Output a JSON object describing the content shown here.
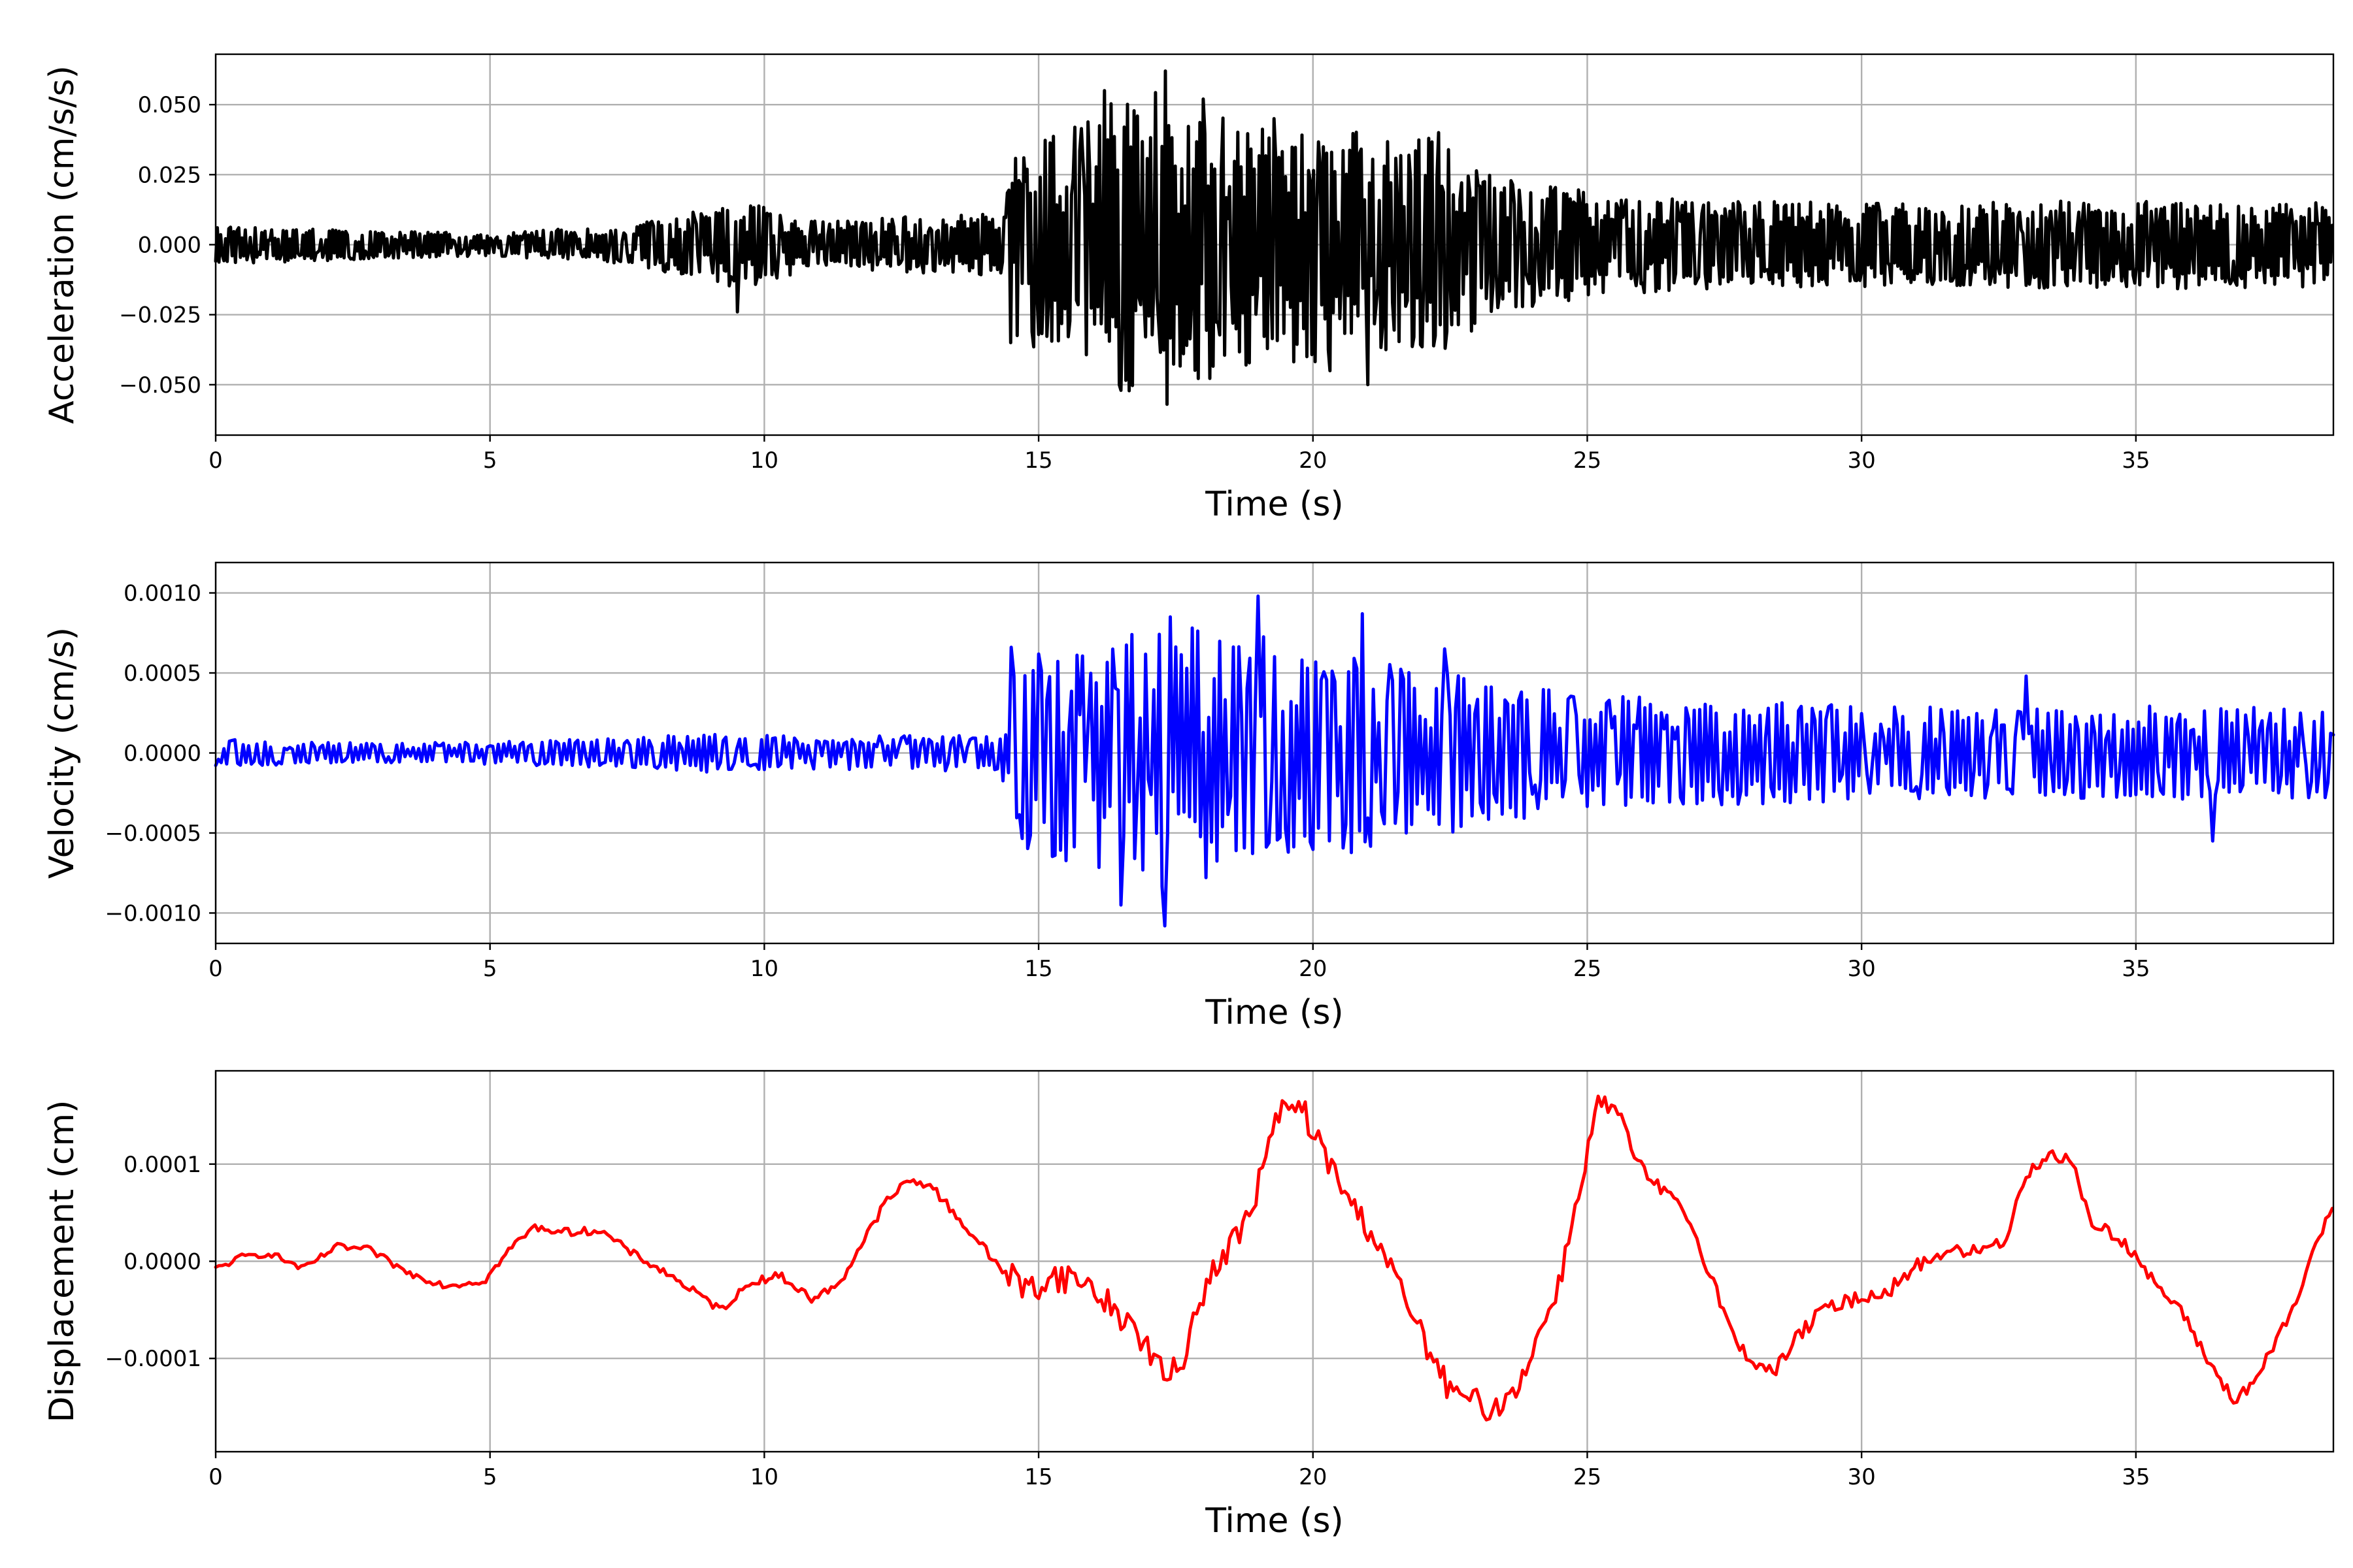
{
  "chart_data": [
    {
      "type": "line",
      "title": "",
      "xlabel": "Time (s)",
      "ylabel": "Acceleration (cm/s/s)",
      "xlim": [
        0,
        38.6
      ],
      "ylim": [
        -0.068,
        0.068
      ],
      "xticks": [
        0,
        5,
        10,
        15,
        20,
        25,
        30,
        35
      ],
      "xtick_labels": [
        "0",
        "5",
        "10",
        "15",
        "20",
        "25",
        "30",
        "35"
      ],
      "yticks": [
        -0.05,
        -0.025,
        0,
        0.025,
        0.05
      ],
      "ytick_labels": [
        "−0.050",
        "−0.025",
        "0.000",
        "0.025",
        "0.050"
      ],
      "grid": true,
      "series": [
        {
          "color": "#000000",
          "envelope": [
            [
              0,
              0.007
            ],
            [
              3,
              0.005
            ],
            [
              5,
              0.004
            ],
            [
              7.5,
              0.007
            ],
            [
              8.5,
              0.011
            ],
            [
              9.5,
              0.016
            ],
            [
              11,
              0.008
            ],
            [
              12.5,
              0.01
            ],
            [
              14.3,
              0.011
            ],
            [
              14.6,
              0.035
            ],
            [
              15.5,
              0.04
            ],
            [
              16.3,
              0.052
            ],
            [
              17.3,
              0.055
            ],
            [
              18.5,
              0.045
            ],
            [
              20,
              0.042
            ],
            [
              21,
              0.04
            ],
            [
              22.3,
              0.038
            ],
            [
              23.5,
              0.025
            ],
            [
              25,
              0.019
            ],
            [
              27,
              0.016
            ],
            [
              30,
              0.015
            ],
            [
              35,
              0.016
            ],
            [
              38.6,
              0.015
            ]
          ],
          "peaks": [
            [
              9.5,
              -0.024
            ],
            [
              14.5,
              -0.035
            ],
            [
              16.2,
              0.055
            ],
            [
              16.5,
              -0.052
            ],
            [
              17.3,
              0.062
            ],
            [
              17.35,
              -0.057
            ],
            [
              18.0,
              0.052
            ],
            [
              19.3,
              0.045
            ],
            [
              20.3,
              -0.045
            ],
            [
              21.0,
              -0.05
            ],
            [
              22.3,
              0.04
            ],
            [
              22.4,
              -0.037
            ]
          ],
          "step_s": 0.03
        }
      ]
    },
    {
      "type": "line",
      "title": "",
      "xlabel": "Time (s)",
      "ylabel": "Velocity (cm/s)",
      "xlim": [
        0,
        38.6
      ],
      "ylim": [
        -0.00119,
        0.00119
      ],
      "xticks": [
        0,
        5,
        10,
        15,
        20,
        25,
        30,
        35
      ],
      "xtick_labels": [
        "0",
        "5",
        "10",
        "15",
        "20",
        "25",
        "30",
        "35"
      ],
      "yticks": [
        -0.001,
        -0.0005,
        0,
        0.0005,
        0.001
      ],
      "ytick_labels": [
        "−0.0010",
        "−0.0005",
        "0.0000",
        "0.0005",
        "0.0010"
      ],
      "grid": true,
      "series": [
        {
          "color": "#0000ff",
          "envelope": [
            [
              0,
              9e-05
            ],
            [
              3,
              6e-05
            ],
            [
              5,
              7e-05
            ],
            [
              7,
              9e-05
            ],
            [
              9,
              0.00012
            ],
            [
              11,
              0.0001
            ],
            [
              12.5,
              0.00011
            ],
            [
              14.3,
              0.00012
            ],
            [
              14.6,
              0.0006
            ],
            [
              16,
              0.00072
            ],
            [
              17.3,
              0.00085
            ],
            [
              18.5,
              0.00075
            ],
            [
              20,
              0.0007
            ],
            [
              21,
              0.0006
            ],
            [
              22.3,
              0.00052
            ],
            [
              23.5,
              0.00042
            ],
            [
              25,
              0.00038
            ],
            [
              28,
              0.00032
            ],
            [
              32,
              0.00028
            ],
            [
              35,
              0.0003
            ],
            [
              38.6,
              0.00028
            ]
          ],
          "peaks": [
            [
              14.5,
              0.00066
            ],
            [
              16.5,
              -0.00095
            ],
            [
              17.3,
              -0.00108
            ],
            [
              17.4,
              0.00085
            ],
            [
              19.0,
              0.00098
            ],
            [
              20.9,
              0.00087
            ],
            [
              22.4,
              0.00065
            ],
            [
              33.0,
              0.00048
            ],
            [
              36.4,
              -0.00055
            ]
          ],
          "step_s": 0.05
        }
      ]
    },
    {
      "type": "line",
      "title": "",
      "xlabel": "Time (s)",
      "ylabel": "Displacement (cm)",
      "xlim": [
        0,
        38.6
      ],
      "ylim": [
        -0.000196,
        0.000196
      ],
      "xticks": [
        0,
        5,
        10,
        15,
        20,
        25,
        30,
        35
      ],
      "xtick_labels": [
        "0",
        "5",
        "10",
        "15",
        "20",
        "25",
        "30",
        "35"
      ],
      "yticks": [
        -0.0001,
        0,
        0.0001
      ],
      "ytick_labels": [
        "−0.0001",
        "0.0000",
        "0.0001"
      ],
      "grid": true,
      "series": [
        {
          "color": "#ff0000",
          "points": [
            [
              0,
              -8e-06
            ],
            [
              0.5,
              5e-06
            ],
            [
              1.0,
              8e-06
            ],
            [
              1.6,
              -8e-06
            ],
            [
              2.2,
              1.5e-05
            ],
            [
              2.8,
              1.2e-05
            ],
            [
              3.5,
              -1.2e-05
            ],
            [
              4.2,
              -2.5e-05
            ],
            [
              4.9,
              -2e-05
            ],
            [
              5.4,
              1.5e-05
            ],
            [
              5.8,
              3.5e-05
            ],
            [
              6.4,
              3e-05
            ],
            [
              7.0,
              3.2e-05
            ],
            [
              7.6,
              8e-06
            ],
            [
              8.3,
              -1.5e-05
            ],
            [
              9.2,
              -5e-05
            ],
            [
              9.8,
              -2e-05
            ],
            [
              10.3,
              -1.5e-05
            ],
            [
              10.9,
              -4e-05
            ],
            [
              11.4,
              -2e-05
            ],
            [
              11.8,
              2e-05
            ],
            [
              12.2,
              6e-05
            ],
            [
              12.6,
              8.2e-05
            ],
            [
              13.0,
              8e-05
            ],
            [
              13.6,
              4e-05
            ],
            [
              14.2,
              0.0
            ],
            [
              14.8,
              -3e-05
            ],
            [
              15.3,
              -1.5e-05
            ],
            [
              15.8,
              -2e-05
            ],
            [
              16.4,
              -5e-05
            ],
            [
              16.9,
              -8e-05
            ],
            [
              17.3,
              -0.00012
            ],
            [
              17.6,
              -0.00011
            ],
            [
              17.9,
              -4e-05
            ],
            [
              18.4,
              1e-05
            ],
            [
              18.8,
              4e-05
            ],
            [
              19.1,
              0.0001
            ],
            [
              19.4,
              0.000155
            ],
            [
              19.8,
              0.000158
            ],
            [
              20.2,
              0.00011
            ],
            [
              20.8,
              5e-05
            ],
            [
              21.2,
              2e-05
            ],
            [
              21.6,
              -3e-05
            ],
            [
              22.1,
              -9e-05
            ],
            [
              22.5,
              -0.000135
            ],
            [
              23.0,
              -0.000145
            ],
            [
              23.3,
              -0.000155
            ],
            [
              23.7,
              -0.00013
            ],
            [
              24.1,
              -8e-05
            ],
            [
              24.5,
              -2e-05
            ],
            [
              24.8,
              6e-05
            ],
            [
              25.2,
              0.000165
            ],
            [
              25.6,
              0.00015
            ],
            [
              25.9,
              0.0001
            ],
            [
              26.4,
              7e-05
            ],
            [
              26.8,
              5e-05
            ],
            [
              27.3,
              -2e-05
            ],
            [
              27.7,
              -8.5e-05
            ],
            [
              28.1,
              -0.000105
            ],
            [
              28.4,
              -0.000115
            ],
            [
              28.8,
              -8e-05
            ],
            [
              29.3,
              -5e-05
            ],
            [
              29.8,
              -4e-05
            ],
            [
              30.5,
              -3e-05
            ],
            [
              31.0,
              -5e-06
            ],
            [
              31.5,
              1e-05
            ],
            [
              32.1,
              1e-05
            ],
            [
              32.6,
              2e-05
            ],
            [
              33.0,
              9e-05
            ],
            [
              33.4,
              0.00011
            ],
            [
              33.8,
              0.000105
            ],
            [
              34.2,
              4e-05
            ],
            [
              34.8,
              2e-05
            ],
            [
              35.3,
              -2e-05
            ],
            [
              35.8,
              -5e-05
            ],
            [
              36.3,
              -0.0001
            ],
            [
              36.8,
              -0.000145
            ],
            [
              37.2,
              -0.00012
            ],
            [
              37.6,
              -8e-05
            ],
            [
              38.0,
              -3e-05
            ],
            [
              38.3,
              2e-05
            ],
            [
              38.6,
              6e-05
            ]
          ],
          "jitter": [
            [
              0,
              2e-06
            ],
            [
              14,
              3e-06
            ],
            [
              14.6,
              1e-05
            ],
            [
              24,
              8e-06
            ],
            [
              26,
              5e-06
            ],
            [
              38.6,
              4e-06
            ]
          ],
          "step_s": 0.06
        }
      ]
    }
  ]
}
